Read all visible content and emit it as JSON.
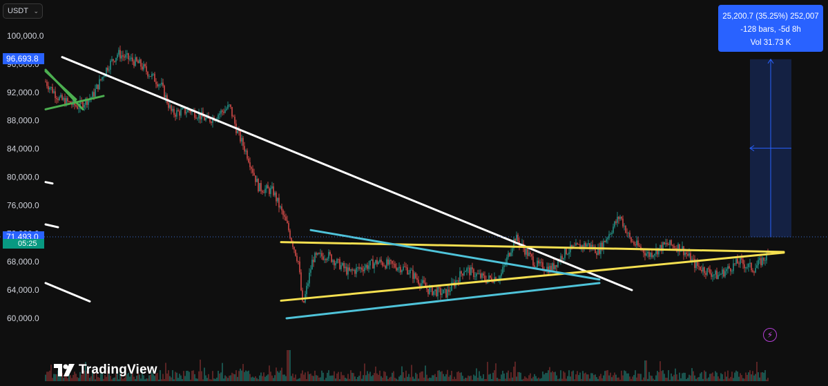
{
  "currency_selector": {
    "label": "USDT",
    "chevron": "chevron-down-icon"
  },
  "price_labels": {
    "high_marker": "96,693.8",
    "current_price": "71,493.0",
    "countdown": "05:25"
  },
  "measure_tooltip": {
    "line1": "25,200.7 (35.25%) 252,007",
    "line2": "-128 bars, -5d 8h",
    "line3": "Vol 31.73 K"
  },
  "brand": {
    "logo_text": "TradingView",
    "logo_icon": "tradingview-logo-icon"
  },
  "icons": {
    "alert": "lightning-icon"
  },
  "colors": {
    "background": "#0f0f0f",
    "up_candle": "#26a69a",
    "down_candle": "#ef5350",
    "trendline_white": "#ffffff",
    "trendline_yellow": "#f5e050",
    "trendline_cyan": "#4fc3d9",
    "trendline_green": "#4caf50",
    "measure_blue": "#2962ff",
    "current_price_label": "#2962ff",
    "countdown_label": "#089981"
  },
  "chart_data": {
    "type": "candlestick",
    "y_axis": {
      "ticks": [
        "100,000.0",
        "96,000.0",
        "92,000.0",
        "88,000.0",
        "84,000.0",
        "80,000.0",
        "76,000.0",
        "72,000.0",
        "68,000.0",
        "64,000.0",
        "60,000.0"
      ],
      "ylim": [
        57000,
        102000
      ]
    },
    "price_path": [
      [
        0,
        93500
      ],
      [
        0.02,
        91000
      ],
      [
        0.045,
        90000
      ],
      [
        0.065,
        91500
      ],
      [
        0.085,
        95500
      ],
      [
        0.1,
        97500
      ],
      [
        0.13,
        96000
      ],
      [
        0.16,
        93000
      ],
      [
        0.175,
        89000
      ],
      [
        0.2,
        89500
      ],
      [
        0.225,
        88000
      ],
      [
        0.255,
        90000
      ],
      [
        0.265,
        86500
      ],
      [
        0.28,
        83000
      ],
      [
        0.295,
        78500
      ],
      [
        0.315,
        78000
      ],
      [
        0.335,
        73000
      ],
      [
        0.35,
        68000
      ],
      [
        0.356,
        61500
      ],
      [
        0.37,
        68500
      ],
      [
        0.39,
        69000
      ],
      [
        0.42,
        66500
      ],
      [
        0.46,
        68000
      ],
      [
        0.5,
        67000
      ],
      [
        0.53,
        64000
      ],
      [
        0.555,
        63500
      ],
      [
        0.58,
        67000
      ],
      [
        0.61,
        65500
      ],
      [
        0.63,
        66000
      ],
      [
        0.65,
        71500
      ],
      [
        0.68,
        67500
      ],
      [
        0.7,
        67000
      ],
      [
        0.72,
        69500
      ],
      [
        0.75,
        70500
      ],
      [
        0.765,
        69500
      ],
      [
        0.795,
        74500
      ],
      [
        0.81,
        71000
      ],
      [
        0.835,
        69000
      ],
      [
        0.86,
        70500
      ],
      [
        0.88,
        70000
      ],
      [
        0.9,
        67500
      ],
      [
        0.93,
        66000
      ],
      [
        0.96,
        68000
      ],
      [
        0.98,
        67000
      ],
      [
        1.0,
        69000
      ],
      [
        1.01,
        71500
      ]
    ],
    "trendlines": [
      {
        "color": "white",
        "from": [
          90,
          97000
        ],
        "to": [
          915,
          64000
        ]
      },
      {
        "color": "yellow",
        "from": [
          407,
          70800
        ],
        "to": [
          1135,
          69400
        ]
      },
      {
        "color": "yellow",
        "from": [
          407,
          62500
        ],
        "to": [
          1135,
          69300
        ]
      },
      {
        "color": "cyan",
        "from": [
          450,
          72500
        ],
        "to": [
          868,
          65500
        ]
      },
      {
        "color": "cyan",
        "from": [
          415,
          60000
        ],
        "to": [
          868,
          65000
        ]
      },
      {
        "color": "green",
        "from": [
          66,
          95200
        ],
        "to": [
          120,
          89600
        ]
      },
      {
        "color": "green",
        "from": [
          66,
          89600
        ],
        "to": [
          150,
          91500
        ]
      },
      {
        "color": "green",
        "from": [
          66,
          95000
        ],
        "to": [
          110,
          91000
        ]
      },
      {
        "color": "white",
        "from": [
          66,
          65000
        ],
        "to": [
          130,
          62400
        ]
      },
      {
        "color": "white",
        "from": [
          66,
          79300
        ],
        "to": [
          76,
          79100
        ]
      },
      {
        "color": "white",
        "from": [
          66,
          73300
        ],
        "to": [
          84,
          72900
        ]
      }
    ],
    "measure_box": {
      "x_range": [
        1086,
        1146
      ],
      "y_range": [
        71493,
        96693.8
      ]
    },
    "volume": true
  }
}
